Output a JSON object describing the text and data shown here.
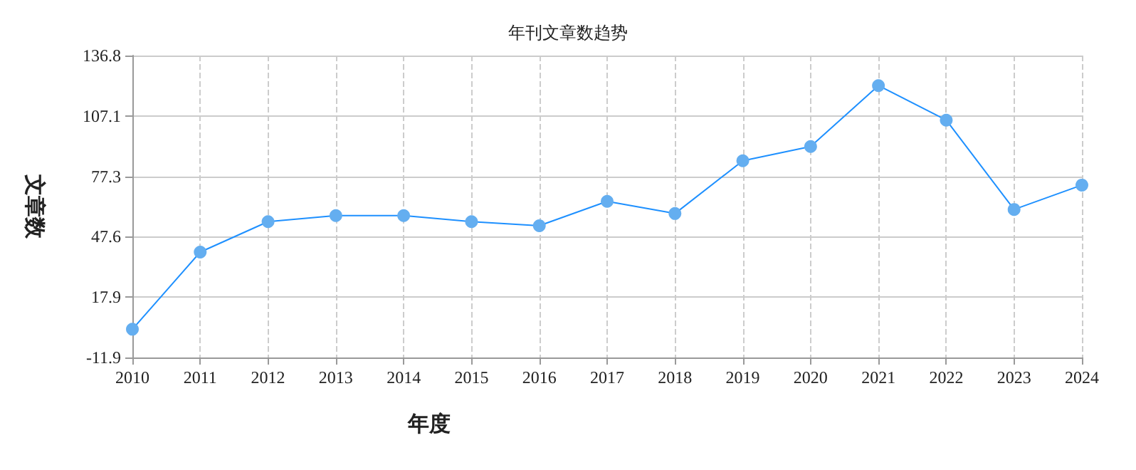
{
  "chart_data": {
    "type": "line",
    "title": "年刊文章数趋势",
    "xlabel": "年度",
    "ylabel": "文章数",
    "categories": [
      "2010",
      "2011",
      "2012",
      "2013",
      "2014",
      "2015",
      "2016",
      "2017",
      "2018",
      "2019",
      "2020",
      "2021",
      "2022",
      "2023",
      "2024"
    ],
    "series": [
      {
        "color": "#1e90ff",
        "values": [
          2,
          40,
          55,
          58,
          58,
          55,
          53,
          65,
          59,
          85,
          92,
          122,
          105,
          61,
          73
        ]
      }
    ],
    "ylim": [
      -11.9,
      136.8
    ],
    "yticks": [
      -11.9,
      17.9,
      47.6,
      77.3,
      107.1,
      136.8
    ],
    "grid": true,
    "marker": "circle",
    "line_style": "solid"
  }
}
